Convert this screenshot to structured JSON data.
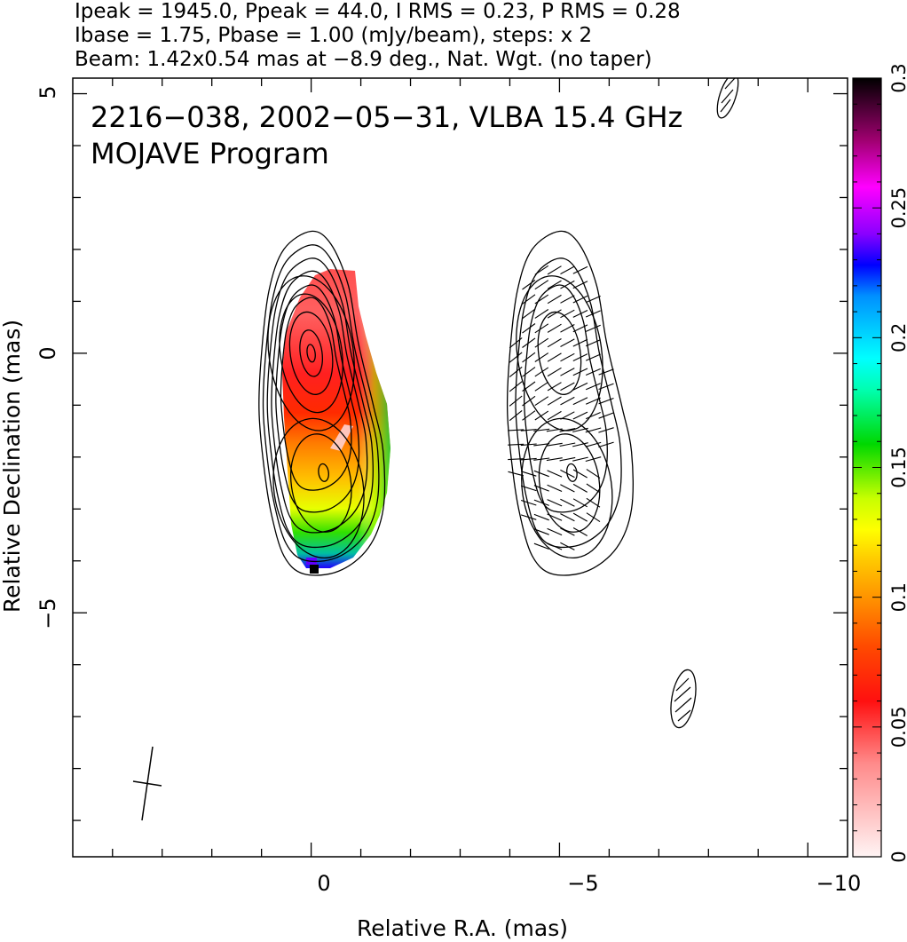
{
  "chart_data": {
    "type": "heatmap",
    "header_lines": [
      "Ipeak = 1945.0, Ppeak = 44.0, I RMS = 0.23, P RMS = 0.28",
      "Ibase = 1.75, Pbase = 1.00 (mJy/beam), steps: x 2",
      "Beam: 1.42x0.54 mas at −8.9 deg., Nat. Wgt. (no taper)"
    ],
    "title": "2216−038, 2002−05−31, VLBA 15.4 GHz",
    "subtitle": "MOJAVE Program",
    "xlabel": "Relative R.A. (mas)",
    "ylabel": "Relative Declination (mas)",
    "xlim": [
      4.8,
      -10.8
    ],
    "ylim": [
      -9.7,
      5.3
    ],
    "xticks": [
      0,
      -5,
      -10
    ],
    "xtick_labels": [
      "0",
      "−5",
      "−10"
    ],
    "yticks": [
      5,
      0,
      -5
    ],
    "ytick_labels": [
      "5",
      "0",
      "−5"
    ],
    "colorbar": {
      "range": [
        0,
        0.3
      ],
      "ticks": [
        0,
        0.05,
        0.1,
        0.15,
        0.2,
        0.25,
        0.3
      ],
      "tick_labels": [
        "0",
        "0.05",
        "0.1",
        "0.15",
        "0.2",
        "0.25",
        "0.3"
      ]
    },
    "beam": {
      "major_mas": 1.42,
      "minor_mas": 0.54,
      "pa_deg": -8.9
    },
    "panels": {
      "left_center_ra": 0.0,
      "right_center_ra": -5.0,
      "core_dec": 0.0,
      "jet_knot_dec": -2.4
    },
    "fractional_polarization_samples": [
      {
        "ra": 0.0,
        "dec": 1.5,
        "value": 0.03
      },
      {
        "ra": 0.0,
        "dec": 0.0,
        "value": 0.035
      },
      {
        "ra": -0.5,
        "dec": -1.2,
        "value": 0.05
      },
      {
        "ra": -0.3,
        "dec": -1.6,
        "value": 0.01
      },
      {
        "ra": -0.2,
        "dec": -2.8,
        "value": 0.11
      },
      {
        "ra": -1.0,
        "dec": -2.6,
        "value": 0.16
      },
      {
        "ra": 0.2,
        "dec": -3.9,
        "value": 0.22
      },
      {
        "ra": 0.2,
        "dec": -4.1,
        "value": 0.3
      }
    ]
  }
}
